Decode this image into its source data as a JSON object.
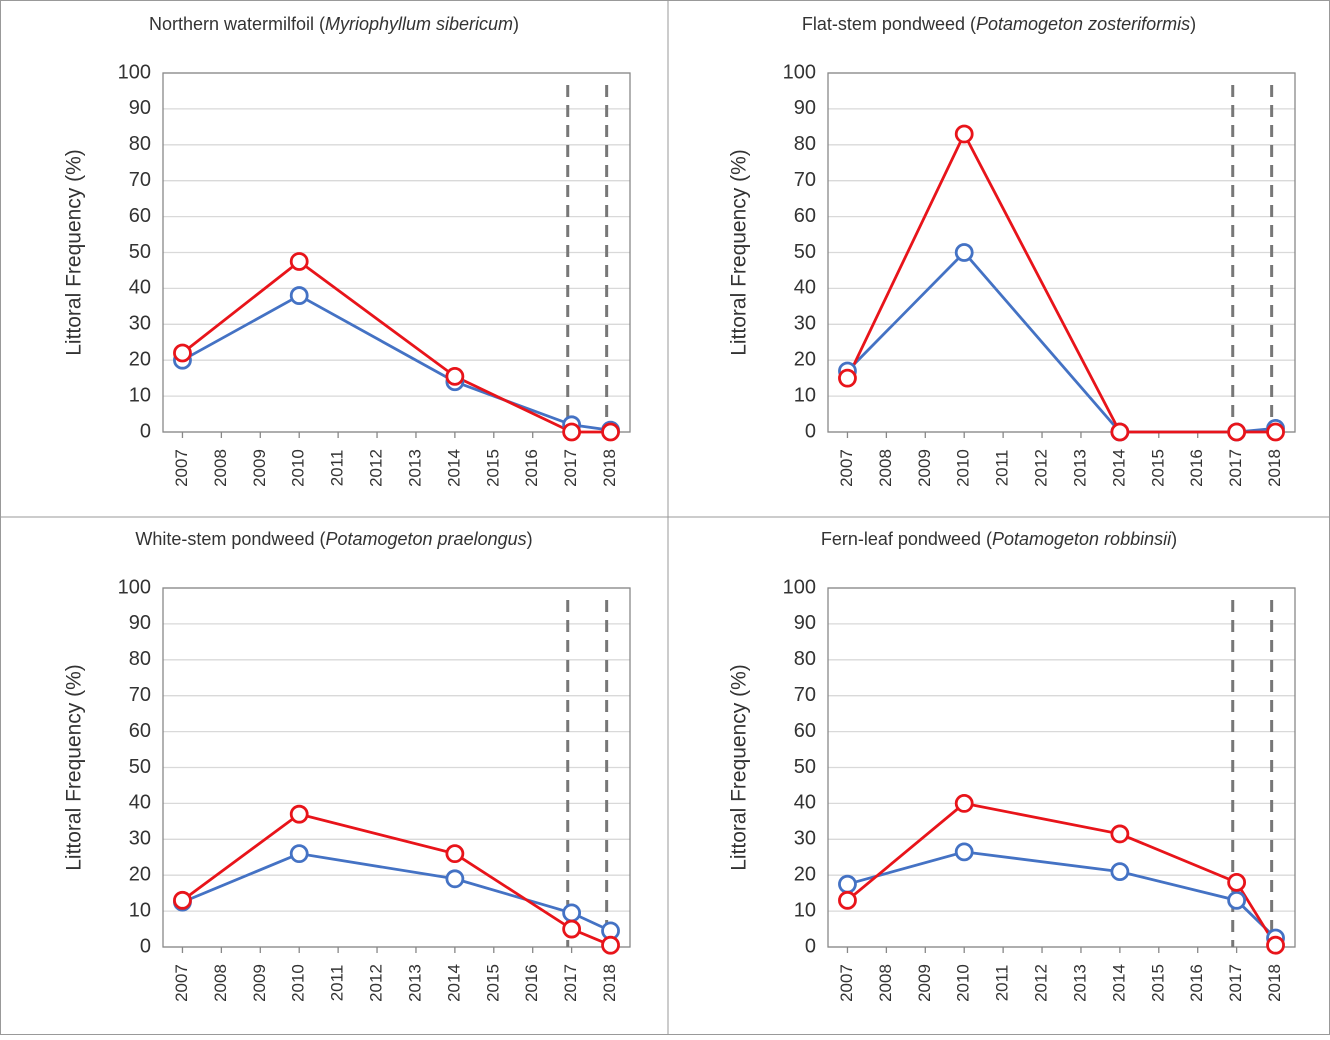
{
  "chart_data": [
    {
      "type": "line",
      "title": "Northern watermilfoil (Myriophyllum sibericum)",
      "ylabel": "Littoral Frequency (%)",
      "x": [
        2007,
        2010,
        2014,
        2017,
        2018
      ],
      "series": [
        {
          "color": "#4472c4",
          "values": [
            20,
            38,
            14,
            2,
            0.5
          ]
        },
        {
          "color": "#e8141a",
          "values": [
            22,
            47.5,
            15.5,
            0,
            0
          ]
        }
      ],
      "xlim": [
        2006.5,
        2018.5
      ],
      "xticks": [
        2007,
        2008,
        2009,
        2010,
        2011,
        2012,
        2013,
        2014,
        2015,
        2016,
        2017,
        2018
      ],
      "ylim": [
        0,
        100
      ],
      "yticks": [
        0,
        10,
        20,
        30,
        40,
        50,
        60,
        70,
        80,
        90,
        100
      ],
      "grid": true,
      "vlines": [
        2016.9,
        2017.9
      ]
    },
    {
      "type": "line",
      "title": "Flat-stem pondweed (Potamogeton zosteriformis)",
      "ylabel": "Littoral Frequency (%)",
      "x": [
        2007,
        2010,
        2014,
        2017,
        2018
      ],
      "series": [
        {
          "color": "#4472c4",
          "values": [
            17,
            50,
            0,
            0,
            1
          ]
        },
        {
          "color": "#e8141a",
          "values": [
            15,
            83,
            0,
            0,
            0
          ]
        }
      ],
      "xlim": [
        2006.5,
        2018.5
      ],
      "xticks": [
        2007,
        2008,
        2009,
        2010,
        2011,
        2012,
        2013,
        2014,
        2015,
        2016,
        2017,
        2018
      ],
      "ylim": [
        0,
        100
      ],
      "yticks": [
        0,
        10,
        20,
        30,
        40,
        50,
        60,
        70,
        80,
        90,
        100
      ],
      "grid": true,
      "vlines": [
        2016.9,
        2017.9
      ]
    },
    {
      "type": "line",
      "title": "White-stem pondweed (Potamogeton praelongus)",
      "ylabel": "Littoral Frequency (%)",
      "x": [
        2007,
        2010,
        2014,
        2017,
        2018
      ],
      "series": [
        {
          "color": "#4472c4",
          "values": [
            12.5,
            26,
            19,
            9.5,
            4.5
          ]
        },
        {
          "color": "#e8141a",
          "values": [
            13,
            37,
            26,
            5,
            0.5
          ]
        }
      ],
      "xlim": [
        2006.5,
        2018.5
      ],
      "xticks": [
        2007,
        2008,
        2009,
        2010,
        2011,
        2012,
        2013,
        2014,
        2015,
        2016,
        2017,
        2018
      ],
      "ylim": [
        0,
        100
      ],
      "yticks": [
        0,
        10,
        20,
        30,
        40,
        50,
        60,
        70,
        80,
        90,
        100
      ],
      "grid": true,
      "vlines": [
        2016.9,
        2017.9
      ]
    },
    {
      "type": "line",
      "title": "Fern-leaf pondweed (Potamogeton robbinsii)",
      "ylabel": "Littoral Frequency (%)",
      "x": [
        2007,
        2010,
        2014,
        2017,
        2018
      ],
      "series": [
        {
          "color": "#4472c4",
          "values": [
            17.5,
            26.5,
            21,
            13,
            2.5
          ]
        },
        {
          "color": "#e8141a",
          "values": [
            13,
            40,
            31.5,
            18,
            0.5
          ]
        }
      ],
      "xlim": [
        2006.5,
        2018.5
      ],
      "xticks": [
        2007,
        2008,
        2009,
        2010,
        2011,
        2012,
        2013,
        2014,
        2015,
        2016,
        2017,
        2018
      ],
      "ylim": [
        0,
        100
      ],
      "yticks": [
        0,
        10,
        20,
        30,
        40,
        50,
        60,
        70,
        80,
        90,
        100
      ],
      "grid": true,
      "vlines": [
        2016.9,
        2017.9
      ]
    }
  ]
}
